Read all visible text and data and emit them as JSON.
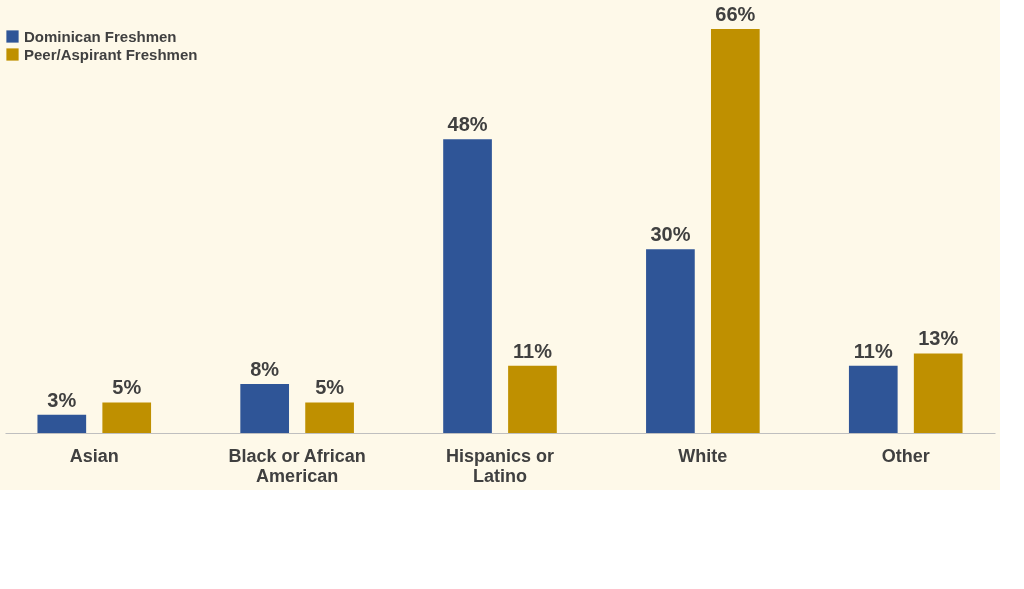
{
  "chart_data": {
    "type": "bar",
    "categories": [
      "Asian",
      "Black or African American",
      "Hispanics or Latino",
      "White",
      "Other"
    ],
    "series": [
      {
        "name": "Dominican Freshmen",
        "color": "#2f5597",
        "values": [
          3,
          8,
          48,
          30,
          11
        ],
        "value_labels": [
          "3%",
          "8%",
          "48%",
          "30%",
          "11%"
        ]
      },
      {
        "name": "Peer/Aspirant Freshmen",
        "color": "#bf9000",
        "values": [
          5,
          5,
          11,
          66,
          13
        ],
        "value_labels": [
          "5%",
          "5%",
          "11%",
          "66%",
          "13%"
        ]
      }
    ],
    "legend": "top left",
    "grid": false
  }
}
